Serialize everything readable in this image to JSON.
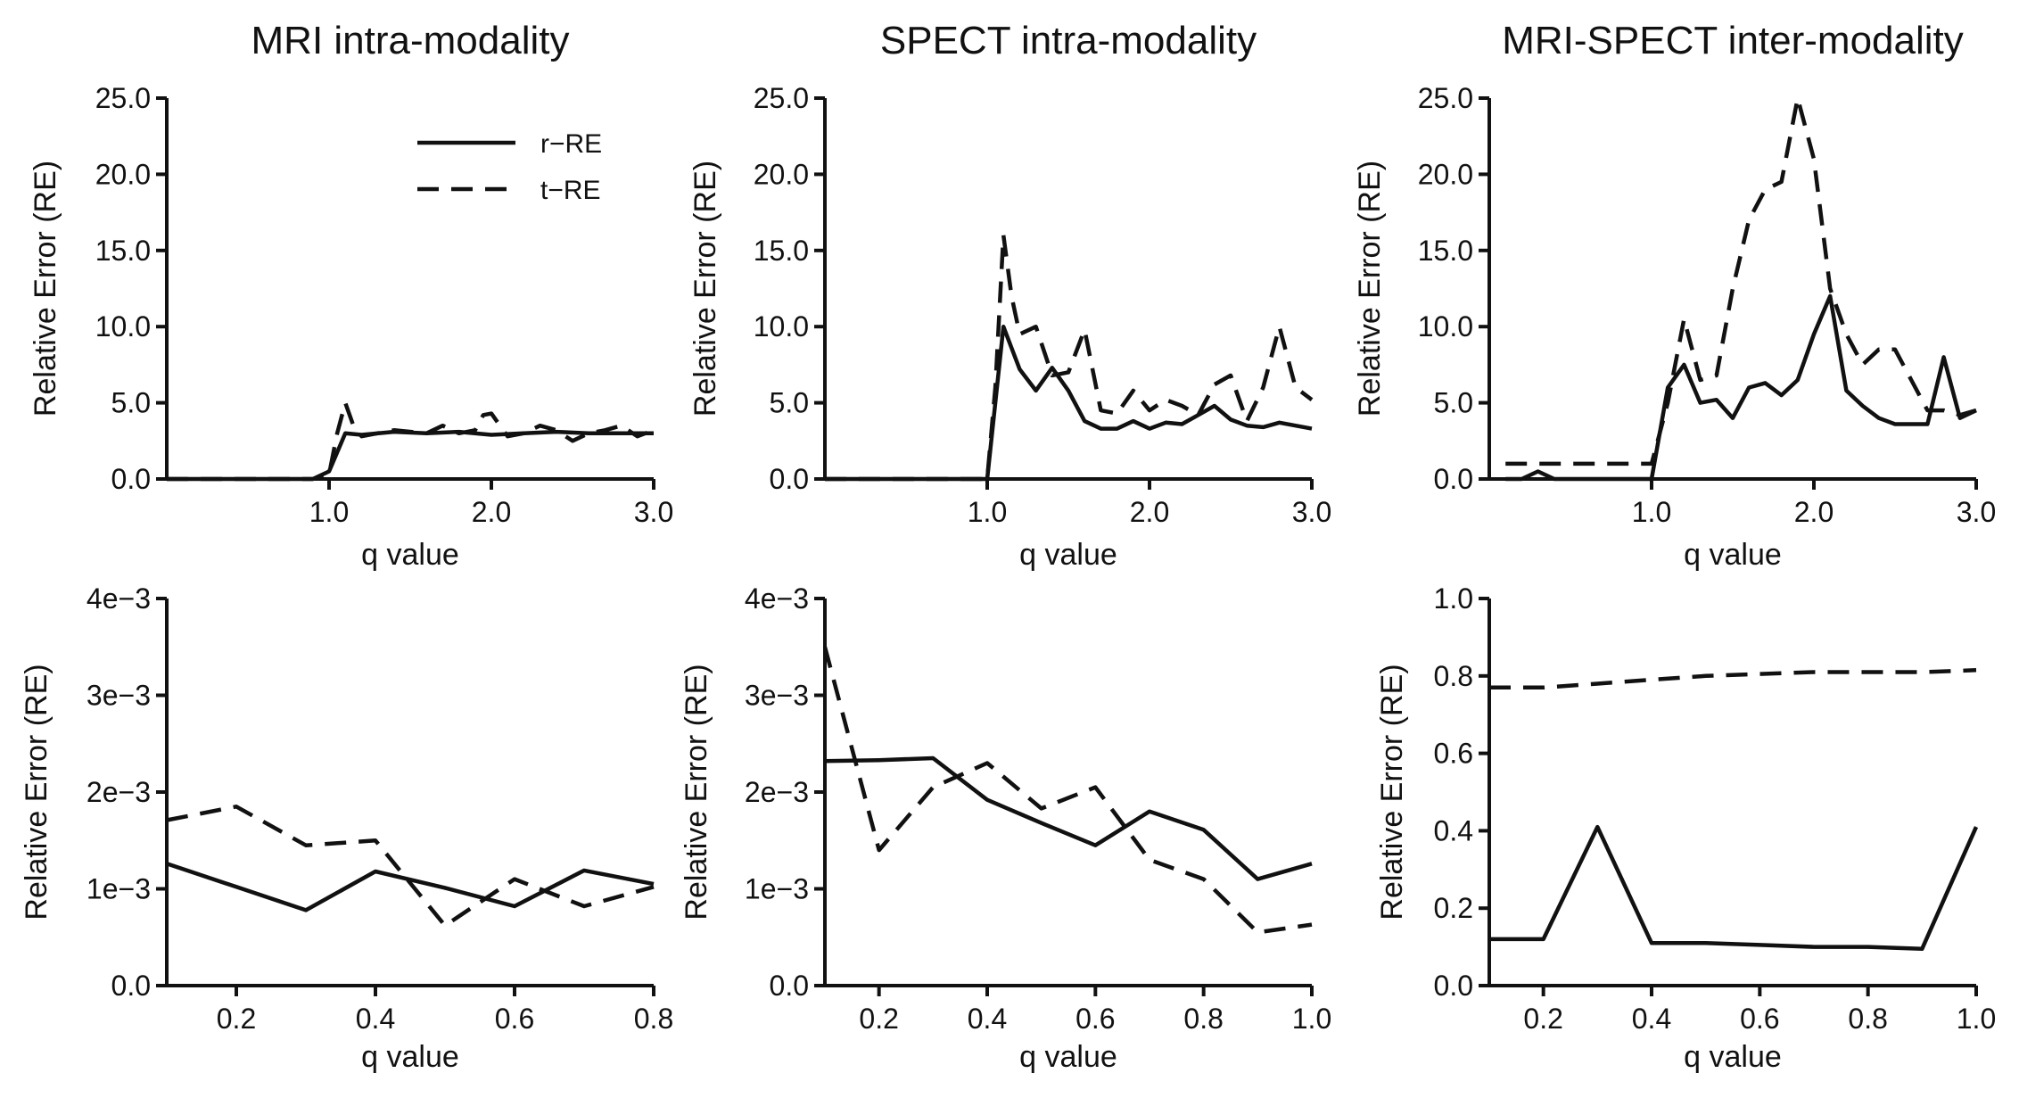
{
  "chart_data": [
    {
      "type": "line",
      "title": "MRI intra-modality",
      "xlabel": "q value",
      "ylabel": "Relative Error (RE)",
      "xlim": [
        0.0,
        3.0
      ],
      "ylim": [
        0.0,
        25.0
      ],
      "xticks": [
        1.0,
        2.0,
        3.0
      ],
      "xtick_labels": [
        "1.0",
        "2.0",
        "3.0"
      ],
      "yticks": [
        0,
        5,
        10,
        15,
        20,
        25
      ],
      "ytick_labels": [
        "0.0",
        "5.0",
        "10.0",
        "15.0",
        "20.0",
        "25.0"
      ],
      "legend": {
        "position": "top-right",
        "entries": [
          "r−RE",
          "t−RE"
        ]
      },
      "series": [
        {
          "name": "r−RE",
          "style": "solid",
          "x": [
            0.0,
            0.8,
            0.9,
            1.0,
            1.1,
            1.2,
            1.4,
            1.6,
            1.8,
            2.0,
            2.2,
            2.4,
            2.6,
            2.8,
            3.0
          ],
          "y": [
            0.0,
            0.0,
            0.0,
            0.5,
            3.0,
            2.9,
            3.1,
            3.0,
            3.1,
            2.9,
            3.0,
            3.1,
            3.0,
            3.0,
            3.0
          ]
        },
        {
          "name": "t−RE",
          "style": "dashed",
          "x": [
            0.0,
            0.8,
            0.9,
            1.0,
            1.05,
            1.1,
            1.15,
            1.2,
            1.4,
            1.6,
            1.7,
            1.8,
            1.9,
            1.95,
            2.0,
            2.1,
            2.2,
            2.3,
            2.4,
            2.5,
            2.6,
            2.7,
            2.8,
            2.9,
            3.0
          ],
          "y": [
            0.0,
            0.0,
            0.0,
            0.3,
            3.0,
            5.0,
            3.5,
            2.8,
            3.2,
            3.0,
            3.5,
            3.0,
            3.2,
            4.2,
            4.3,
            2.8,
            3.0,
            3.5,
            3.2,
            2.5,
            3.0,
            3.2,
            3.5,
            2.8,
            3.2
          ]
        }
      ]
    },
    {
      "type": "line",
      "title": "SPECT intra-modality",
      "xlabel": "q value",
      "ylabel": "Relative Error (RE)",
      "xlim": [
        0.0,
        3.0
      ],
      "ylim": [
        0.0,
        25.0
      ],
      "xticks": [
        1.0,
        2.0,
        3.0
      ],
      "xtick_labels": [
        "1.0",
        "2.0",
        "3.0"
      ],
      "yticks": [
        0,
        5,
        10,
        15,
        20,
        25
      ],
      "ytick_labels": [
        "0.0",
        "5.0",
        "10.0",
        "15.0",
        "20.0",
        "25.0"
      ],
      "series": [
        {
          "name": "r−RE",
          "style": "solid",
          "x": [
            0.0,
            0.9,
            1.0,
            1.1,
            1.2,
            1.3,
            1.4,
            1.5,
            1.6,
            1.7,
            1.8,
            1.9,
            2.0,
            2.1,
            2.2,
            2.3,
            2.4,
            2.5,
            2.6,
            2.7,
            2.8,
            2.9,
            3.0
          ],
          "y": [
            0.0,
            0.0,
            0.0,
            10.0,
            7.2,
            5.8,
            7.3,
            5.8,
            3.8,
            3.3,
            3.3,
            3.8,
            3.3,
            3.7,
            3.6,
            4.2,
            4.8,
            3.9,
            3.5,
            3.4,
            3.7,
            3.5,
            3.3
          ]
        },
        {
          "name": "t−RE",
          "style": "dashed",
          "x": [
            0.0,
            0.9,
            1.0,
            1.05,
            1.1,
            1.15,
            1.2,
            1.3,
            1.4,
            1.5,
            1.6,
            1.7,
            1.8,
            1.9,
            2.0,
            2.1,
            2.2,
            2.3,
            2.4,
            2.5,
            2.6,
            2.7,
            2.8,
            2.9,
            3.0
          ],
          "y": [
            0.0,
            0.0,
            0.0,
            6.0,
            16.0,
            12.0,
            9.5,
            10.0,
            6.8,
            7.0,
            9.8,
            4.5,
            4.3,
            5.8,
            4.5,
            5.2,
            4.8,
            4.2,
            6.2,
            6.8,
            3.8,
            6.0,
            10.0,
            6.0,
            5.2
          ]
        }
      ]
    },
    {
      "type": "line",
      "title": "MRI-SPECT inter-modality",
      "xlabel": "q value",
      "ylabel": "Relative Error (RE)",
      "xlim": [
        0.0,
        3.0
      ],
      "ylim": [
        0.0,
        25.0
      ],
      "xticks": [
        1.0,
        2.0,
        3.0
      ],
      "xtick_labels": [
        "1.0",
        "2.0",
        "3.0"
      ],
      "yticks": [
        0,
        5,
        10,
        15,
        20,
        25
      ],
      "ytick_labels": [
        "0.0",
        "5.0",
        "10.0",
        "15.0",
        "20.0",
        "25.0"
      ],
      "series": [
        {
          "name": "r−RE",
          "style": "solid",
          "x": [
            0.1,
            0.2,
            0.3,
            0.4,
            0.5,
            1.0,
            1.1,
            1.2,
            1.3,
            1.4,
            1.5,
            1.6,
            1.7,
            1.8,
            1.9,
            2.0,
            2.1,
            2.2,
            2.3,
            2.4,
            2.5,
            2.6,
            2.7,
            2.8,
            2.9,
            3.0
          ],
          "y": [
            0.0,
            0.0,
            0.5,
            0.0,
            0.0,
            0.0,
            6.0,
            7.5,
            5.0,
            5.2,
            4.0,
            6.0,
            6.3,
            5.5,
            6.5,
            9.5,
            12.0,
            5.8,
            4.8,
            4.0,
            3.6,
            3.6,
            3.6,
            8.0,
            4.0,
            4.5
          ]
        },
        {
          "name": "t−RE",
          "style": "dashed",
          "x": [
            0.1,
            1.0,
            1.1,
            1.2,
            1.3,
            1.4,
            1.5,
            1.6,
            1.7,
            1.8,
            1.9,
            2.0,
            2.1,
            2.2,
            2.3,
            2.4,
            2.5,
            2.6,
            2.7,
            2.8,
            2.9,
            3.0
          ],
          "y": [
            1.0,
            1.0,
            5.0,
            10.5,
            6.5,
            6.8,
            12.5,
            17.0,
            19.0,
            19.5,
            25.0,
            21.0,
            12.5,
            9.5,
            7.5,
            8.5,
            8.5,
            6.5,
            4.5,
            4.5,
            4.2,
            4.5
          ]
        }
      ]
    },
    {
      "type": "line",
      "title": "",
      "xlabel": "q value",
      "ylabel": "Relative Error (RE)",
      "xlim": [
        0.1,
        0.8
      ],
      "ylim": [
        0.0,
        0.004
      ],
      "xticks": [
        0.2,
        0.4,
        0.6,
        0.8
      ],
      "xtick_labels": [
        "0.2",
        "0.4",
        "0.6",
        "0.8"
      ],
      "yticks": [
        0.0,
        0.001,
        0.002,
        0.003,
        0.004
      ],
      "ytick_labels": [
        "0.0",
        "1e−3",
        "2e−3",
        "3e−3",
        "4e−3"
      ],
      "series": [
        {
          "name": "r−RE",
          "style": "solid",
          "x": [
            0.1,
            0.2,
            0.3,
            0.4,
            0.5,
            0.6,
            0.7,
            0.8
          ],
          "y": [
            0.00126,
            0.00102,
            0.00078,
            0.00118,
            0.00101,
            0.00082,
            0.00119,
            0.00105
          ]
        },
        {
          "name": "t−RE",
          "style": "dashed",
          "x": [
            0.1,
            0.2,
            0.3,
            0.4,
            0.5,
            0.6,
            0.7,
            0.8
          ],
          "y": [
            0.00171,
            0.00185,
            0.00145,
            0.0015,
            0.00062,
            0.0011,
            0.00082,
            0.00102
          ]
        }
      ]
    },
    {
      "type": "line",
      "title": "",
      "xlabel": "q value",
      "ylabel": "Relative Error (RE)",
      "xlim": [
        0.1,
        1.0
      ],
      "ylim": [
        0.0,
        0.004
      ],
      "xticks": [
        0.2,
        0.4,
        0.6,
        0.8,
        1.0
      ],
      "xtick_labels": [
        "0.2",
        "0.4",
        "0.6",
        "0.8",
        "1.0"
      ],
      "yticks": [
        0.0,
        0.001,
        0.002,
        0.003,
        0.004
      ],
      "ytick_labels": [
        "0.0",
        "1e−3",
        "2e−3",
        "3e−3",
        "4e−3"
      ],
      "series": [
        {
          "name": "r−RE",
          "style": "solid",
          "x": [
            0.1,
            0.2,
            0.3,
            0.4,
            0.5,
            0.6,
            0.7,
            0.8,
            0.9,
            1.0
          ],
          "y": [
            0.00232,
            0.00233,
            0.00235,
            0.00192,
            0.00168,
            0.00145,
            0.0018,
            0.00161,
            0.0011,
            0.00126
          ]
        },
        {
          "name": "t−RE",
          "style": "dashed",
          "x": [
            0.1,
            0.2,
            0.3,
            0.4,
            0.5,
            0.6,
            0.7,
            0.8,
            0.9,
            1.0
          ],
          "y": [
            0.0035,
            0.0014,
            0.00205,
            0.0023,
            0.00183,
            0.00205,
            0.0013,
            0.0011,
            0.00055,
            0.00063
          ]
        }
      ]
    },
    {
      "type": "line",
      "title": "",
      "xlabel": "q value",
      "ylabel": "Relative Error (RE)",
      "xlim": [
        0.1,
        1.0
      ],
      "ylim": [
        0.0,
        1.0
      ],
      "xticks": [
        0.2,
        0.4,
        0.6,
        0.8,
        1.0
      ],
      "xtick_labels": [
        "0.2",
        "0.4",
        "0.6",
        "0.8",
        "1.0"
      ],
      "yticks": [
        0.0,
        0.2,
        0.4,
        0.6,
        0.8,
        1.0
      ],
      "ytick_labels": [
        "0.0",
        "0.2",
        "0.4",
        "0.6",
        "0.8",
        "1.0"
      ],
      "series": [
        {
          "name": "r−RE",
          "style": "solid",
          "x": [
            0.1,
            0.2,
            0.3,
            0.4,
            0.5,
            0.6,
            0.7,
            0.8,
            0.9,
            1.0
          ],
          "y": [
            0.12,
            0.12,
            0.41,
            0.11,
            0.11,
            0.105,
            0.1,
            0.1,
            0.095,
            0.41
          ]
        },
        {
          "name": "t−RE",
          "style": "dashed",
          "x": [
            0.1,
            0.2,
            0.3,
            0.4,
            0.5,
            0.6,
            0.7,
            0.8,
            0.9,
            1.0
          ],
          "y": [
            0.77,
            0.77,
            0.78,
            0.79,
            0.8,
            0.805,
            0.81,
            0.81,
            0.81,
            0.815
          ]
        }
      ]
    }
  ]
}
